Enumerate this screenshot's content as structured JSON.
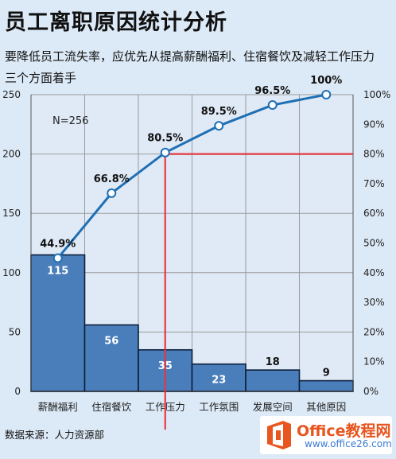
{
  "title": "员工离职原因统计分析",
  "subtitle": "要降低员工流失率，应优先从提高薪酬福利、住宿餐饮及减轻工作压力三个方面着手",
  "source": "数据来源：人力资源部",
  "annotation": "N=256",
  "watermark": {
    "main": "Office教程网",
    "sub": "www.office26.com"
  },
  "colors": {
    "bar": "#4a7ebb",
    "line": "#1f6fb4",
    "reference": "#e8323c",
    "background": "#dce9f6"
  },
  "chart_data": {
    "type": "pareto",
    "categories": [
      "薪酬福利",
      "住宿餐饮",
      "工作压力",
      "工作氛围",
      "发展空间",
      "其他原因"
    ],
    "bar_values": [
      115,
      56,
      35,
      23,
      18,
      9
    ],
    "line_values": [
      44.9,
      66.8,
      80.5,
      89.5,
      96.5,
      100
    ],
    "line_labels": [
      "44.9%",
      "66.8%",
      "80.5%",
      "89.5%",
      "96.5%",
      "100%"
    ],
    "y_left": {
      "range": [
        0,
        250
      ],
      "ticks": [
        0,
        50,
        100,
        150,
        200,
        250
      ]
    },
    "y_right": {
      "range": [
        0,
        100
      ],
      "ticks": [
        "0%",
        "10%",
        "20%",
        "30%",
        "40%",
        "50%",
        "60%",
        "70%",
        "80%",
        "90%",
        "100%"
      ]
    },
    "reference_line_value": 80,
    "grid": true
  }
}
